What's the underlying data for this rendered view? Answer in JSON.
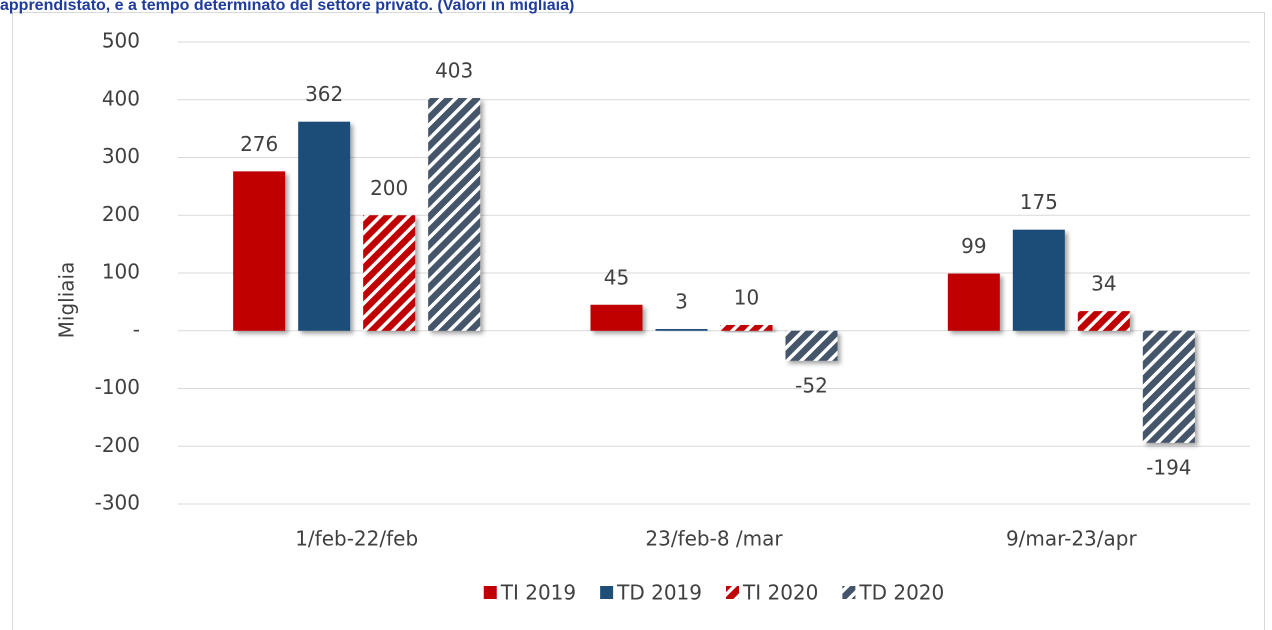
{
  "chart_data": {
    "type": "bar",
    "title": "apprendistato, e a tempo determinato del settore privato. (Valori in migliaia)",
    "y_label": "Migliaia",
    "categories": [
      "1/feb-22/feb",
      "23/feb-8 /mar",
      "9/mar-23/apr"
    ],
    "series": [
      {
        "name": "TI 2019",
        "color": "#c00000",
        "hatch": false,
        "values": [
          276,
          45,
          99
        ]
      },
      {
        "name": "TD 2019",
        "color": "#1f4e79",
        "hatch": false,
        "values": [
          362,
          3,
          175
        ]
      },
      {
        "name": "TI 2020",
        "color": "#c00000",
        "hatch": true,
        "values": [
          200,
          10,
          34
        ]
      },
      {
        "name": "TD 2020",
        "color": "#44546a",
        "hatch": true,
        "values": [
          403,
          -52,
          -194
        ]
      }
    ],
    "ylim": [
      -300,
      500
    ],
    "yticks": [
      -300,
      -200,
      -100,
      {
        "value": 0,
        "label": "-"
      },
      100,
      200,
      300,
      400,
      500
    ],
    "grid": true,
    "legend": "bottom"
  }
}
